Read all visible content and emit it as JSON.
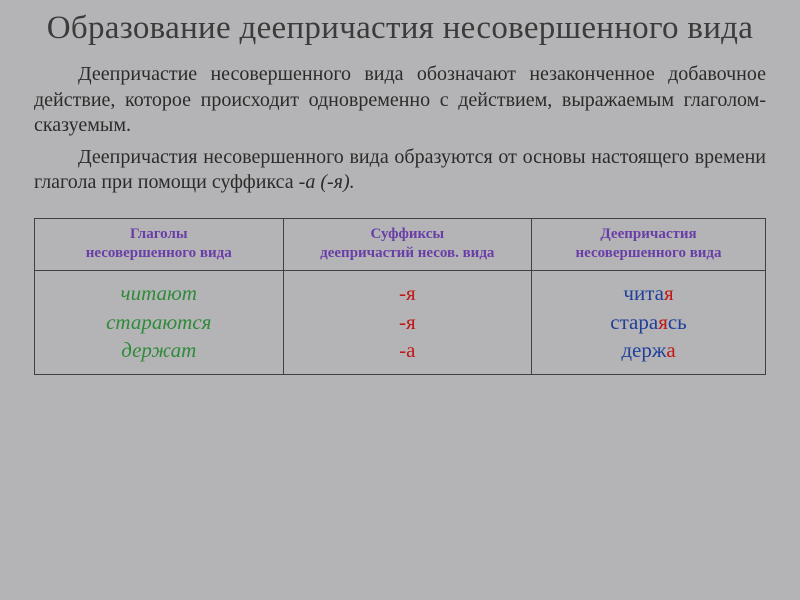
{
  "title": "Образование деепричастия несовершенного вида",
  "paragraph1": {
    "lead": "Деепричастие несовершенного вида обозначают незаконченное добавочное действие, которое происходит одновременно с действием, выражаемым глаголом-сказуемым."
  },
  "paragraph2": {
    "lead": "Деепричастия несовершенного вида образуются от основы настоящего времени глагола при помощи суффикса",
    "suffix_italic": " -а (-я)."
  },
  "table": {
    "headers": {
      "col1_line1": "Глаголы",
      "col1_line2": "несовершенного вида",
      "col2_line1": "Суффиксы",
      "col2_line2": "деепричастий несов. вида",
      "col3_line1": "Деепричастия",
      "col3_line2": "несовершенного вида"
    },
    "verbs": {
      "r1": "читают",
      "r2": "стараются",
      "r3": "держат"
    },
    "suffixes": {
      "r1": "-я",
      "r2": "-я",
      "r3": "-а"
    },
    "gerunds": {
      "r1_base": "чита",
      "r1_suf": "я",
      "r2_base": "стара",
      "r2_suf": "я",
      "r2_post": "сь",
      "r3_base": "держ",
      "r3_suf": "а"
    },
    "colors": {
      "header_text": "#6a3ea8",
      "verb_text": "#2f8a3a",
      "suffix_text": "#c01818",
      "gerund_base": "#1f3f9a",
      "gerund_highlight": "#c01818",
      "border": "#404040",
      "background": "#b4b4b6"
    },
    "fonts": {
      "title_pt": 33,
      "body_pt": 20,
      "header_pt": 15,
      "cell_pt": 21
    }
  }
}
